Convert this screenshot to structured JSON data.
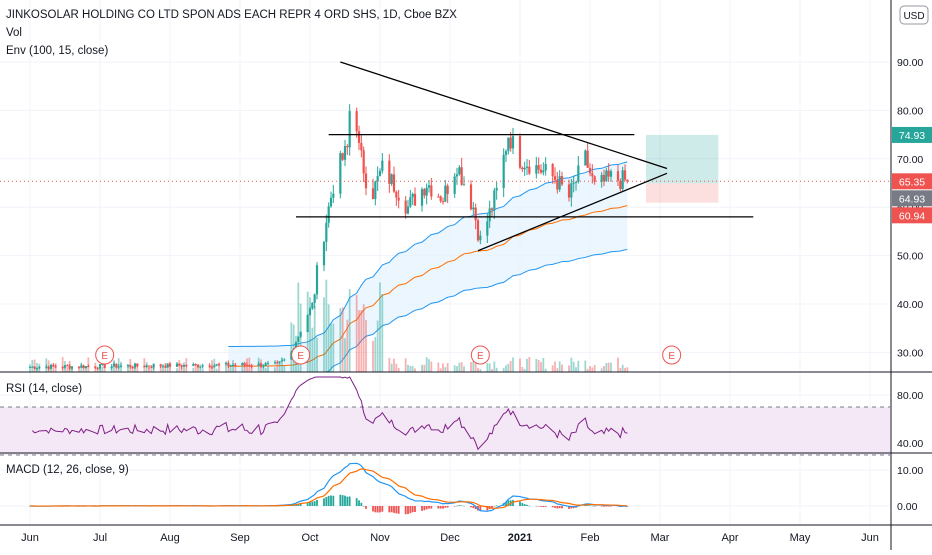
{
  "header": {
    "title": "JINKOSOLAR HOLDING CO LTD SPON ADS EACH REPR 4 ORD SHS, 1D, Cboe BZX",
    "vol_label": "Vol",
    "env_label": "Env (100, 15, close)",
    "currency_button": "USD"
  },
  "colors": {
    "up": "#26a69a",
    "down": "#ef5350",
    "env_upper": "#2196f3",
    "env_basis": "#ff6d00",
    "env_fill": "#e3f2fd",
    "rsi_line": "#7e1f86",
    "rsi_band": "#f3e5f5",
    "macd_line": "#2196f3",
    "signal_line": "#ff6d00",
    "badge_green": "#26a69a",
    "badge_red": "#ef5350",
    "badge_gray": "#787b86"
  },
  "x_axis": {
    "labels": [
      "Jun",
      "Jul",
      "Aug",
      "Sep",
      "Oct",
      "Nov",
      "Dec",
      "2021",
      "Feb",
      "Mar",
      "Apr",
      "May",
      "Jun"
    ]
  },
  "earnings_markers": [
    "E",
    "E",
    "E",
    "E"
  ],
  "price_panel": {
    "y_ticks": [
      "90.00",
      "80.00",
      "70.00",
      "60.00",
      "50.00",
      "40.00",
      "30.00"
    ],
    "badges": [
      {
        "label": "74.93",
        "value": 74.93,
        "color": "#26a69a"
      },
      {
        "label": "65.35",
        "value": 65.35,
        "color": "#ef5350"
      },
      {
        "label": "64.93",
        "value": 64.93,
        "color": "#787b86"
      },
      {
        "label": "60.94",
        "value": 60.94,
        "color": "#ef5350"
      }
    ],
    "current_price": 65.35,
    "position": {
      "entry": 64.93,
      "target": 74.93,
      "stop": 60.94
    }
  },
  "rsi_panel": {
    "label": "RSI (14, close)",
    "y_ticks": [
      "80.00",
      "40.00"
    ]
  },
  "macd_panel": {
    "label": "MACD (12, 26, close, 9)",
    "y_ticks": [
      "10.00",
      "0.00"
    ]
  },
  "chart_data": {
    "type": "candlestick",
    "title": "JINKOSOLAR HOLDING CO LTD SPON ADS EACH REPR 4 ORD SHS, 1D, Cboe BZX",
    "price_range": [
      25,
      98
    ],
    "price_anchors": [
      [
        "2020-06-01",
        27
      ],
      [
        "2020-09-15",
        27.5
      ],
      [
        "2020-09-20",
        29
      ],
      [
        "2020-09-30",
        40
      ],
      [
        "2020-10-05",
        55
      ],
      [
        "2020-10-10",
        67
      ],
      [
        "2020-10-15",
        72
      ],
      [
        "2020-10-17",
        88
      ],
      [
        "2020-10-20",
        72
      ],
      [
        "2020-10-25",
        62
      ],
      [
        "2020-10-30",
        68
      ],
      [
        "2020-11-05",
        64
      ],
      [
        "2020-11-10",
        60
      ],
      [
        "2020-11-18",
        65
      ],
      [
        "2020-11-25",
        62
      ],
      [
        "2020-12-01",
        69
      ],
      [
        "2020-12-08",
        60
      ],
      [
        "2020-12-11",
        53
      ],
      [
        "2020-12-18",
        63
      ],
      [
        "2020-12-23",
        75
      ],
      [
        "2020-12-28",
        70
      ],
      [
        "2021-01-05",
        68
      ],
      [
        "2021-01-12",
        66
      ],
      [
        "2021-01-18",
        62
      ],
      [
        "2021-01-25",
        70
      ],
      [
        "2021-01-29",
        64
      ],
      [
        "2021-02-05",
        66
      ],
      [
        "2021-02-12",
        65.35
      ]
    ],
    "trend_lines": [
      {
        "name": "descending resistance",
        "points": [
          [
            "2020-10-12",
            90
          ],
          [
            "2021-03-01",
            68
          ]
        ]
      },
      {
        "name": "ascending support",
        "points": [
          [
            "2020-12-10",
            51
          ],
          [
            "2021-03-01",
            67
          ]
        ]
      },
      {
        "name": "horizontal resistance",
        "points": [
          [
            "2020-10-07",
            75
          ],
          [
            "2021-02-15",
            75
          ]
        ]
      },
      {
        "name": "horizontal support",
        "points": [
          [
            "2020-09-23",
            58
          ],
          [
            "2021-04-07",
            58
          ]
        ]
      }
    ],
    "envelope": {
      "length": 100,
      "percent": 15,
      "source": "close"
    },
    "rsi": {
      "length": 14,
      "source": "close",
      "overbought": 70,
      "oversold": 30,
      "range": [
        25,
        95
      ]
    },
    "macd": {
      "fast": 12,
      "slow": 26,
      "source": "close",
      "signal": 9,
      "range": [
        -4,
        14
      ]
    }
  }
}
